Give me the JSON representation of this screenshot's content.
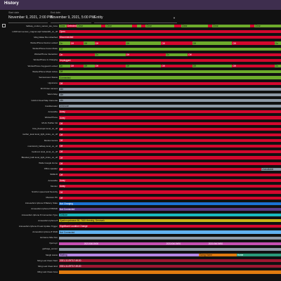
{
  "header": {
    "title": "History"
  },
  "filters": {
    "start": {
      "label": "Start date",
      "value": "November 9, 2021, 2:00 PM"
    },
    "end": {
      "label": "End date",
      "value": "November 9, 2021, 5:00 PM"
    },
    "entity": {
      "label": "",
      "value": "Entity"
    }
  },
  "colors": {
    "on": "#d4082e",
    "off": "#6dab2c",
    "gray": "#8f9aa7",
    "orange": "#e07b10",
    "blue": "#1a72d4",
    "purple": "#7e3fb1",
    "yellow": "#c9b518",
    "cyan": "#19b9bf",
    "teal": "#2a9a7a",
    "pink": "#c64fb1",
    "lightblue": "#61b1ef",
    "dkpurple": "#5a3c8c",
    "darkred": "#a01732",
    "lilac": "#b686e5"
  },
  "rows": [
    {
      "label": "hallway_motion_sensor_ias_zone",
      "segments": [
        {
          "from": 0,
          "to": 0.035,
          "color": "off",
          "text": "Clear"
        },
        {
          "from": 0.035,
          "to": 0.08,
          "color": "on",
          "text": "Detected"
        },
        {
          "from": 0.08,
          "to": 0.19,
          "color": "off",
          "text": "Clear"
        },
        {
          "from": 0.19,
          "to": 0.21,
          "color": "on",
          "text": ""
        },
        {
          "from": 0.21,
          "to": 0.33,
          "color": "off",
          "text": "Clear"
        },
        {
          "from": 0.33,
          "to": 0.35,
          "color": "on",
          "text": ""
        },
        {
          "from": 0.35,
          "to": 0.37,
          "color": "off",
          "text": ""
        },
        {
          "from": 0.37,
          "to": 0.39,
          "color": "on",
          "text": ""
        },
        {
          "from": 0.39,
          "to": 0.52,
          "color": "off",
          "text": "Clear"
        },
        {
          "from": 0.52,
          "to": 0.55,
          "color": "on",
          "text": ""
        },
        {
          "from": 0.55,
          "to": 0.67,
          "color": "off",
          "text": "Clear"
        },
        {
          "from": 0.67,
          "to": 0.69,
          "color": "on",
          "text": ""
        },
        {
          "from": 0.69,
          "to": 0.86,
          "color": "off",
          "text": "Clear"
        },
        {
          "from": 0.86,
          "to": 0.88,
          "color": "on",
          "text": ""
        },
        {
          "from": 0.88,
          "to": 1,
          "color": "off",
          "text": "Clear"
        }
      ]
    },
    {
      "label": "LUMI lumi.sensor_magnet.aq2 hsdasd20_on_off",
      "segments": [
        {
          "from": 0,
          "to": 1,
          "color": "on",
          "text": "Open"
        }
      ]
    },
    {
      "label": "Ming Water Box Attached",
      "segments": [
        {
          "from": 0,
          "to": 1,
          "color": "on",
          "text": "Disconnected"
        }
      ]
    },
    {
      "label": "WorkerPhone Device Locked",
      "segments": [
        {
          "from": 0,
          "to": 0.05,
          "color": "off",
          "text": "On"
        },
        {
          "from": 0.05,
          "to": 0.11,
          "color": "on",
          "text": "Off"
        },
        {
          "from": 0.11,
          "to": 0.16,
          "color": "off",
          "text": "Off"
        },
        {
          "from": 0.16,
          "to": 0.3,
          "color": "on",
          "text": "Off"
        },
        {
          "from": 0.3,
          "to": 0.46,
          "color": "off",
          "text": "Off"
        },
        {
          "from": 0.46,
          "to": 0.6,
          "color": "on",
          "text": "Off"
        },
        {
          "from": 0.6,
          "to": 0.78,
          "color": "off",
          "text": "Off"
        },
        {
          "from": 0.78,
          "to": 0.97,
          "color": "on",
          "text": "Off"
        },
        {
          "from": 0.97,
          "to": 1,
          "color": "off",
          "text": "On"
        }
      ]
    },
    {
      "label": "WorkerPhone Focus Mode",
      "segments": [
        {
          "from": 0,
          "to": 1,
          "color": "off",
          "text": "Off"
        }
      ]
    },
    {
      "label": "WorkerPhone Interaction",
      "segments": [
        {
          "from": 0,
          "to": 0.16,
          "color": "on",
          "text": "On"
        },
        {
          "from": 0.16,
          "to": 0.3,
          "color": "off",
          "text": "On"
        },
        {
          "from": 0.3,
          "to": 0.48,
          "color": "on",
          "text": "Off"
        },
        {
          "from": 0.48,
          "to": 0.58,
          "color": "off",
          "text": "On"
        },
        {
          "from": 0.58,
          "to": 1,
          "color": "on",
          "text": "Off"
        }
      ]
    },
    {
      "label": "WorkerPhone Is Charging",
      "segments": [
        {
          "from": 0,
          "to": 1,
          "color": "on",
          "text": "Unplugged"
        }
      ]
    },
    {
      "label": "WorkerPhone Keyguard Locked",
      "segments": [
        {
          "from": 0,
          "to": 0.05,
          "color": "off",
          "text": "On"
        },
        {
          "from": 0.05,
          "to": 0.11,
          "color": "on",
          "text": "Off"
        },
        {
          "from": 0.11,
          "to": 0.16,
          "color": "off",
          "text": "Off"
        },
        {
          "from": 0.16,
          "to": 0.3,
          "color": "on",
          "text": "Off"
        },
        {
          "from": 0.3,
          "to": 0.46,
          "color": "off",
          "text": "Off"
        },
        {
          "from": 0.46,
          "to": 0.6,
          "color": "on",
          "text": "Off"
        },
        {
          "from": 0.6,
          "to": 0.78,
          "color": "off",
          "text": "Off"
        },
        {
          "from": 0.78,
          "to": 0.97,
          "color": "on",
          "text": "Off"
        },
        {
          "from": 0.97,
          "to": 1,
          "color": "off",
          "text": "On"
        }
      ]
    },
    {
      "label": "WorkerPhone Music Active",
      "segments": [
        {
          "from": 0,
          "to": 1,
          "color": "off",
          "text": "Off"
        }
      ]
    },
    {
      "label": "Samsonsson Status",
      "segments": [
        {
          "from": 0,
          "to": 1,
          "color": "off",
          "text": "Connected"
        }
      ]
    },
    {
      "label": "Ugosnene",
      "segments": [
        {
          "from": 0,
          "to": 1,
          "color": "on",
          "text": "Off"
        }
      ]
    },
    {
      "label": "3D Printer camera",
      "segments": [
        {
          "from": 0,
          "to": 1,
          "color": "gray",
          "text": "Idle"
        }
      ]
    },
    {
      "label": "Warm Mop",
      "segments": [
        {
          "from": 0,
          "to": 1,
          "color": "gray",
          "text": "Idle"
        }
      ]
    },
    {
      "label": "Gizzint Cloud Map Cameras",
      "segments": [
        {
          "from": 0,
          "to": 1,
          "color": "gray",
          "text": "Idle"
        }
      ]
    },
    {
      "label": "Candlemaker",
      "segments": [
        {
          "from": 0,
          "to": 1,
          "color": "gray",
          "text": "Unknown"
        }
      ]
    },
    {
      "label": "Accessibe",
      "segments": [
        {
          "from": 0,
          "to": 1,
          "color": "on",
          "text": "Away"
        }
      ]
    },
    {
      "label": "WorkerPhone",
      "segments": [
        {
          "from": 0,
          "to": 1,
          "color": "on",
          "text": "Away"
        }
      ]
    },
    {
      "label": "MI Air Purifier 3H",
      "segments": [
        {
          "from": 0,
          "to": 1,
          "color": "on",
          "text": "Off"
        }
      ]
    },
    {
      "label": "bios_floorspot level_on_off",
      "segments": [
        {
          "from": 0,
          "to": 1,
          "color": "on",
          "text": "Off"
        }
      ]
    },
    {
      "label": "mother_level level_light_index_on_off",
      "segments": [
        {
          "from": 0,
          "to": 1,
          "color": "on",
          "text": "Off"
        }
      ]
    },
    {
      "label": "Monitor kamra",
      "segments": [
        {
          "from": 0,
          "to": 1,
          "color": "on",
          "text": "Off"
        }
      ]
    },
    {
      "label": "monitorstri_hallway level_on_off",
      "segments": [
        {
          "from": 0,
          "to": 1,
          "color": "on",
          "text": "Off"
        }
      ]
    },
    {
      "label": "bedroom level_level_on_off",
      "segments": [
        {
          "from": 0,
          "to": 1,
          "color": "on",
          "text": "Off"
        }
      ]
    },
    {
      "label": "Blended_bulb level_light_index_on_off",
      "segments": [
        {
          "from": 0,
          "to": 1,
          "color": "on",
          "text": "Off"
        }
      ]
    },
    {
      "label": "Wolle Google Home",
      "segments": [
        {
          "from": 0,
          "to": 1,
          "color": "on",
          "text": "Off"
        }
      ]
    },
    {
      "label": "Office speaker",
      "segments": [
        {
          "from": 0,
          "to": 0.91,
          "color": "on",
          "text": "Off"
        },
        {
          "from": 0.91,
          "to": 1,
          "color": "gray",
          "text": "Unavailable"
        }
      ]
    },
    {
      "label": "SHIELD",
      "segments": [
        {
          "from": 0,
          "to": 1,
          "color": "on",
          "text": "Off"
        }
      ]
    },
    {
      "label": "Accessibe",
      "segments": [
        {
          "from": 0,
          "to": 1,
          "color": "on",
          "text": "Away"
        }
      ]
    },
    {
      "label": "Monitor",
      "segments": [
        {
          "from": 0,
          "to": 1,
          "color": "on",
          "text": "Away"
        }
      ]
    },
    {
      "label": "Smirfon speed and Security",
      "segments": [
        {
          "from": 0,
          "to": 1,
          "color": "on",
          "text": "Off"
        }
      ]
    },
    {
      "label": "Monitors PC",
      "segments": [
        {
          "from": 0,
          "to": 1,
          "color": "on",
          "text": "Off"
        }
      ]
    },
    {
      "label": "Annesofie's Iphone 8 Battery State",
      "segments": [
        {
          "from": 0,
          "to": 1,
          "color": "blue",
          "text": "Not Charging"
        }
      ]
    },
    {
      "label": "Annesofie's Iphone 8 BSSID",
      "segments": [
        {
          "from": 0,
          "to": 1,
          "color": "dkpurple",
          "text": "Not Connected"
        }
      ]
    },
    {
      "label": "Annesofie's Iphone 8 Connection Type",
      "segments": [
        {
          "from": 0,
          "to": 1,
          "color": "cyan",
          "text": "Cellular"
        }
      ]
    },
    {
      "label": "Annesofie's Iphone 8",
      "segments": [
        {
          "from": 0,
          "to": 1,
          "color": "yellow",
          "text": "Sjaelerupstrasse 88, 7400 Herning, Denmark"
        }
      ]
    },
    {
      "label": "Annesofie's Iphone 8 Last Update Trigger",
      "segments": [
        {
          "from": 0,
          "to": 1,
          "color": "on",
          "text": "Significant Location Change"
        }
      ]
    },
    {
      "label": "Annesofie's Iphone 8 SSID",
      "segments": [
        {
          "from": 0,
          "to": 1,
          "color": "lightblue",
          "text": "Not Connected"
        }
      ]
    },
    {
      "label": "Entrance Mite Dev",
      "segments": [
        {
          "from": 0,
          "to": 1,
          "color": "gray",
          "text": ""
        }
      ]
    },
    {
      "label": "Fjernsyn",
      "segments": [
        {
          "from": 0,
          "to": 0.11,
          "color": "pink",
          "text": ""
        },
        {
          "from": 0.11,
          "to": 0.48,
          "color": "pink",
          "text": "2021/04/19/00"
        },
        {
          "from": 0.48,
          "to": 0.67,
          "color": "pink",
          "text": "2021/04/19/00"
        },
        {
          "from": 0.67,
          "to": 1,
          "color": "pink",
          "text": "2021/04/19/00"
        }
      ]
    },
    {
      "label": "garbage_sensor",
      "segments": [
        {
          "from": 0,
          "to": 1,
          "color": "gray",
          "text": ""
        }
      ]
    },
    {
      "label": "Sleigh status",
      "segments": [
        {
          "from": 0,
          "to": 0.63,
          "color": "lilac",
          "text": "Waiting"
        },
        {
          "from": 0.63,
          "to": 0.8,
          "color": "orange",
          "text": "Going Home"
        },
        {
          "from": 0.8,
          "to": 1,
          "color": "teal",
          "text": "Home"
        }
      ]
    },
    {
      "label": "Ming Last Clean Start",
      "segments": [
        {
          "from": 0,
          "to": 1,
          "color": "darkred",
          "text": "2021-11-09T17:49:20"
        }
      ]
    },
    {
      "label": "Ming Last Clean End",
      "segments": [
        {
          "from": 0,
          "to": 1,
          "color": "darkred",
          "text": "2021-11-09T17:49:20"
        }
      ]
    },
    {
      "label": "Ming Last Clean Area",
      "segments": [
        {
          "from": 0,
          "to": 1,
          "color": "orange",
          "text": ""
        }
      ]
    }
  ]
}
